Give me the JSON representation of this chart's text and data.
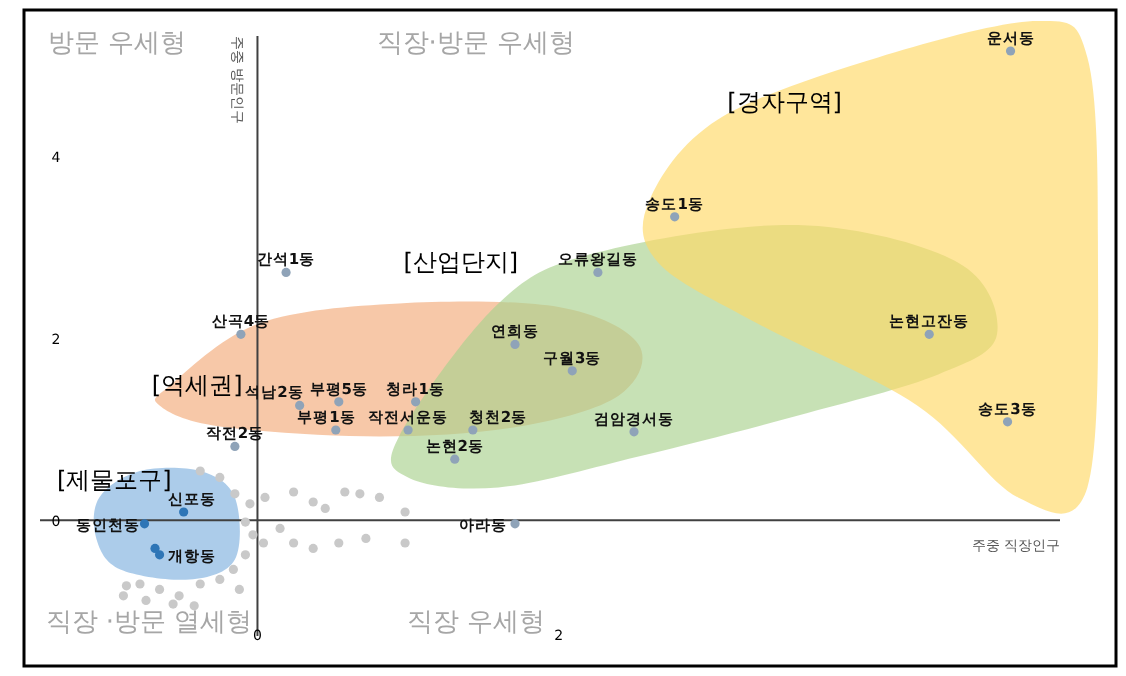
{
  "chart_data": {
    "type": "scatter",
    "xlabel": "주중 직장인구",
    "ylabel": "주중 방문인구",
    "xlim": [
      -1.55,
      5.7
    ],
    "ylim": [
      -1.6,
      5.6
    ],
    "xticks": [
      0,
      2
    ],
    "yticks": [
      0,
      2,
      4
    ],
    "marker": "circle",
    "series": [
      {
        "color": "#c9c9c9",
        "x": [
          -0.38,
          -0.25,
          -0.05,
          0.05,
          0.24,
          0.37,
          0.45,
          0.58,
          0.68,
          0.81,
          0.98,
          -0.08,
          -0.03,
          0.04,
          0.15,
          0.24,
          0.37,
          0.54,
          0.72,
          0.98,
          -0.08,
          -0.16,
          -0.25,
          -0.38,
          -0.52,
          -0.65,
          -0.78,
          -0.87,
          -0.89,
          -0.74,
          -0.56,
          -0.42,
          -0.12,
          -0.15
        ],
        "values": [
          0.54,
          0.47,
          0.18,
          0.25,
          0.31,
          0.2,
          0.13,
          0.31,
          0.29,
          0.25,
          0.09,
          -0.02,
          -0.16,
          -0.25,
          -0.09,
          -0.25,
          -0.31,
          -0.25,
          -0.2,
          -0.25,
          -0.38,
          -0.54,
          -0.65,
          -0.7,
          -0.83,
          -0.76,
          -0.7,
          -0.72,
          -0.83,
          -0.88,
          -0.92,
          -0.94,
          -0.76,
          0.29
        ]
      },
      {
        "color": "#8fa3b8",
        "x": [
          5.0,
          2.77,
          2.26,
          4.46,
          4.98,
          0.19,
          -0.11,
          1.71,
          2.09,
          2.5,
          0.28,
          0.54,
          1.05,
          -0.15,
          0.52,
          1.0,
          1.43,
          1.31,
          1.71
        ],
        "values": [
          5.15,
          3.33,
          2.72,
          2.04,
          1.08,
          2.72,
          2.04,
          1.93,
          1.64,
          0.97,
          1.26,
          1.3,
          1.3,
          0.81,
          0.99,
          0.99,
          0.99,
          0.67,
          -0.04
        ]
      },
      {
        "color": "#2e75b6",
        "x": [
          -0.49,
          -0.75,
          -0.65,
          -0.68
        ],
        "values": [
          0.09,
          -0.04,
          -0.38,
          -0.31
        ]
      }
    ],
    "annotations": [
      "방문 우세형",
      "직장·방문 우세형",
      "직장 ·방문 열세형",
      "직장 우세형",
      "[경자구역]",
      "[산업단지]",
      "[역세권]",
      "[제물포구]",
      {
        "text": "운서동",
        "x": 5.0,
        "y": 5.15
      },
      {
        "text": "송도1동",
        "x": 2.77,
        "y": 3.33
      },
      {
        "text": "오류왕길동",
        "x": 2.26,
        "y": 2.72
      },
      {
        "text": "논현고잔동",
        "x": 4.46,
        "y": 2.04
      },
      {
        "text": "송도3동",
        "x": 4.98,
        "y": 1.08
      },
      {
        "text": "간석1동",
        "x": 0.19,
        "y": 2.72
      },
      {
        "text": "산곡4동",
        "x": -0.11,
        "y": 2.04
      },
      {
        "text": "연희동",
        "x": 1.71,
        "y": 1.93
      },
      {
        "text": "구월3동",
        "x": 2.09,
        "y": 1.64
      },
      {
        "text": "검암경서동",
        "x": 2.5,
        "y": 0.97
      },
      {
        "text": "석남2동",
        "x": 0.28,
        "y": 1.26
      },
      {
        "text": "부평5동",
        "x": 0.54,
        "y": 1.3
      },
      {
        "text": "청라1동",
        "x": 1.05,
        "y": 1.3
      },
      {
        "text": "작전2동",
        "x": -0.15,
        "y": 0.81
      },
      {
        "text": "부평1동",
        "x": 0.52,
        "y": 0.99
      },
      {
        "text": "작전서운동",
        "x": 1.0,
        "y": 0.99
      },
      {
        "text": "청천2동",
        "x": 1.43,
        "y": 0.99
      },
      {
        "text": "논현2동",
        "x": 1.31,
        "y": 0.67
      },
      {
        "text": "아라동",
        "x": 1.71,
        "y": -0.04
      },
      {
        "text": "신포동",
        "x": -0.49,
        "y": 0.09
      },
      {
        "text": "동인천동",
        "x": -0.75,
        "y": -0.04
      },
      {
        "text": "개항동",
        "x": -0.65,
        "y": -0.38
      }
    ]
  }
}
